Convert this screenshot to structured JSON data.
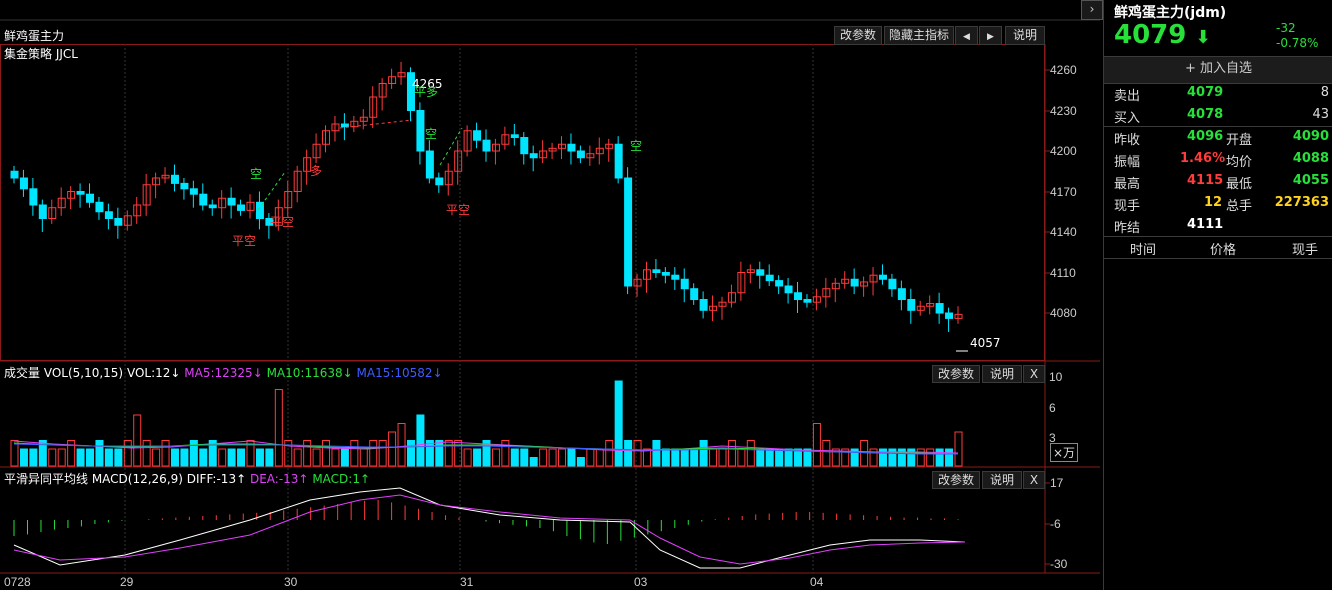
{
  "title": "鲜鸡蛋主力",
  "strategy": "集金策略 JJCL",
  "toolbar": {
    "params": "改参数",
    "hide_main": "隐藏主指标",
    "left": "◀",
    "right": "▶",
    "help": "说明"
  },
  "price_axis": [
    "4260",
    "4230",
    "4200",
    "4170",
    "4140",
    "4110",
    "4080"
  ],
  "annotations": {
    "high": "4265",
    "low": "4057",
    "kong1": "空",
    "pingkong1": "平空",
    "pingkong2": "平空",
    "duo1": "多",
    "pingduo": "平多",
    "kong2": "空",
    "pingkong3": "平空",
    "kong3": "空"
  },
  "volume": {
    "label_prefix": "成交量 VOL(5,10,15)",
    "vol": "VOL:12↓",
    "ma5": "MA5:12325↓",
    "ma10": "MA10:11638↓",
    "ma15": "MA15:10582↓",
    "axis": [
      "10",
      "6",
      "3"
    ],
    "unit": "×万",
    "params": "改参数",
    "help": "说明",
    "close": "X"
  },
  "macd": {
    "label_prefix": "平滑异同平均线 MACD(12,26,9)",
    "diff": "DIFF:-13↑",
    "dea": "DEA:-13↑",
    "macd": "MACD:1↑",
    "axis": [
      "17",
      "-6",
      "-30"
    ],
    "params": "改参数",
    "help": "说明",
    "close": "X"
  },
  "dates": [
    "0728",
    "29",
    "30",
    "31",
    "03",
    "04"
  ],
  "quote": {
    "name": "鲜鸡蛋主力(jdm)",
    "price": "4079",
    "change": "-32",
    "change_pct": "-0.78%",
    "add_watch": "+ 加入自选",
    "sell_label": "卖出",
    "sell_price": "4079",
    "sell_qty": "8",
    "buy_label": "买入",
    "buy_price": "4078",
    "buy_qty": "43",
    "prev_close_label": "昨收",
    "prev_close": "4096",
    "open_label": "开盘",
    "open": "4090",
    "amp_label": "振幅",
    "amp": "1.46%",
    "avg_label": "均价",
    "avg": "4088",
    "high_label": "最高",
    "high": "4115",
    "low_label": "最低",
    "low": "4055",
    "cur_vol_label": "现手",
    "cur_vol": "12",
    "total_vol_label": "总手",
    "total_vol": "227363",
    "prev_settle_label": "昨结",
    "prev_settle": "4111",
    "col_time": "时间",
    "col_price": "价格",
    "col_vol": "现手"
  },
  "colors": {
    "up": "#ff3b3b",
    "down": "#00e5ff",
    "ma5": "#e040fb",
    "ma10": "#27e03a",
    "ma15": "#3d5cff"
  }
}
